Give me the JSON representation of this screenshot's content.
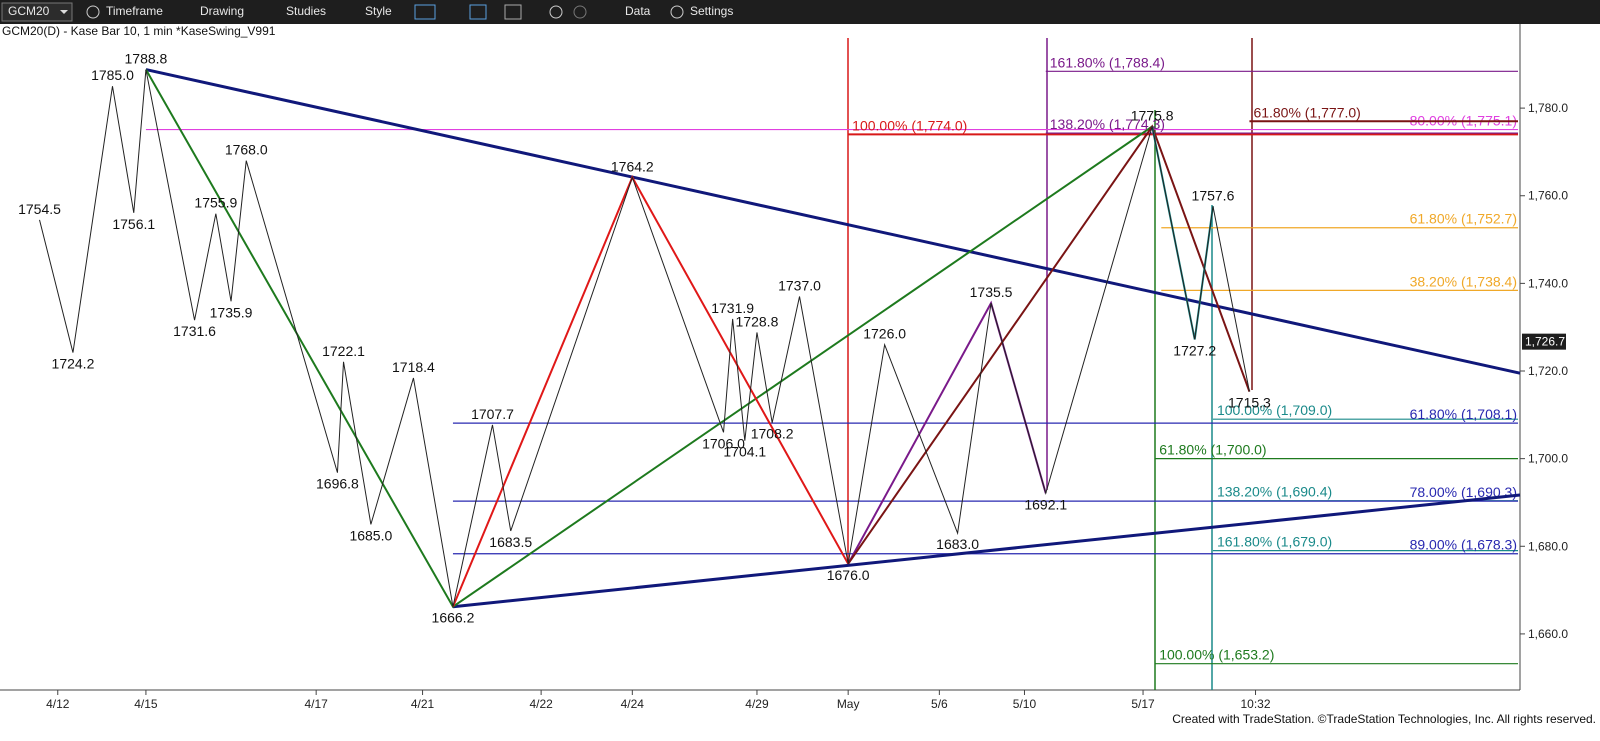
{
  "toolbar": {
    "symbol": "GCM20",
    "menus": [
      "Timeframe",
      "Drawing",
      "Studies",
      "Style",
      "Data",
      "Settings"
    ]
  },
  "footer": "Created with TradeStation. ©TradeStation Technologies, Inc. All rights reserved.",
  "chart_data": {
    "type": "line",
    "title": "GCM20(D) - Kase Bar 10, 1 min  *KaseSwing_V991",
    "ylim": [
      1647.2,
      1796
    ],
    "yticks": [
      {
        "value": 1660,
        "label": "1,660.0"
      },
      {
        "value": 1680,
        "label": "1,680.0"
      },
      {
        "value": 1700,
        "label": "1,700.0"
      },
      {
        "value": 1720,
        "label": "1,720.0"
      },
      {
        "value": 1740,
        "label": "1,740.0"
      },
      {
        "value": 1760,
        "label": "1,760.0"
      },
      {
        "value": 1780,
        "label": "1,780.0"
      }
    ],
    "xlim": [
      0,
      500
    ],
    "xticks": [
      {
        "value": 19,
        "label": "4/12"
      },
      {
        "value": 48,
        "label": "4/15"
      },
      {
        "value": 104,
        "label": "4/17"
      },
      {
        "value": 139,
        "label": "4/21"
      },
      {
        "value": 178,
        "label": "4/22"
      },
      {
        "value": 208,
        "label": "4/24"
      },
      {
        "value": 249,
        "label": "4/29"
      },
      {
        "value": 279,
        "label": "May"
      },
      {
        "value": 309,
        "label": "5/6"
      },
      {
        "value": 337,
        "label": "5/10"
      },
      {
        "value": 376,
        "label": "5/17"
      },
      {
        "value": 413,
        "label": "10:32"
      }
    ],
    "last": {
      "value": 1726.7,
      "label": "1,726.7"
    },
    "swings": {
      "color": "#222222",
      "x": [
        13,
        24,
        37,
        44,
        48,
        64,
        71,
        76,
        81,
        111,
        113,
        122,
        136,
        149,
        162,
        168,
        208,
        238,
        241,
        245,
        249,
        254,
        263,
        279,
        291,
        315,
        326,
        344,
        379,
        393,
        399,
        411
      ],
      "values": [
        1754.5,
        1724.2,
        1785.0,
        1756.1,
        1788.8,
        1731.6,
        1755.9,
        1735.9,
        1768.0,
        1696.8,
        1722.1,
        1685.0,
        1718.4,
        1666.2,
        1707.7,
        1683.5,
        1764.2,
        1706.0,
        1731.9,
        1704.1,
        1728.8,
        1708.2,
        1737.0,
        1676.0,
        1726.0,
        1683.0,
        1735.5,
        1692.1,
        1775.8,
        1727.2,
        1757.6,
        1715.3
      ],
      "value_labels": [
        "1754.5",
        "1724.2",
        "1785.0",
        "1756.1",
        "1788.8",
        "1731.6",
        "1755.9",
        "1735.9",
        "1768.0",
        "1696.8",
        "1722.1",
        "1685.0",
        "1718.4",
        "1666.2",
        "1707.7",
        "1683.5",
        "1764.2",
        "1706.0",
        "1731.9",
        "1704.1",
        "1728.8",
        "1708.2",
        "1737.0",
        "1676.0",
        "1726.0",
        "1683.0",
        "1735.5",
        "1692.1",
        "1775.8",
        "1727.2",
        "1757.6",
        "1715.3"
      ]
    },
    "trendlines": [
      {
        "color": "#10187a",
        "x": [
          48,
          500
        ],
        "values": [
          1788.8,
          1719.5
        ]
      },
      {
        "color": "#10187a",
        "x": [
          149,
          500
        ],
        "values": [
          1666.2,
          1691.7
        ]
      }
    ],
    "waves": [
      {
        "color": "#1e7a1e",
        "x": [
          48,
          149,
          379
        ],
        "values": [
          1788.8,
          1666.2,
          1775.8
        ]
      },
      {
        "color": "#e01818",
        "x": [
          149,
          208,
          279
        ],
        "values": [
          1666.2,
          1764.2,
          1676.0
        ]
      },
      {
        "color": "#7a1a8a",
        "x": [
          279,
          326,
          344
        ],
        "values": [
          1676.0,
          1735.5,
          1692.1
        ]
      },
      {
        "color": "#7a1414",
        "x": [
          279,
          379,
          411
        ],
        "values": [
          1676.0,
          1775.8,
          1715.3
        ]
      },
      {
        "color": "#1a8a8a",
        "x": [
          379,
          393,
          399
        ],
        "values": [
          1775.8,
          1727.2,
          1757.6
        ]
      }
    ],
    "levels": [
      {
        "label": "80.00% (1,775.1)",
        "value": 1775.1,
        "x": 48,
        "color": "#e040e0"
      },
      {
        "label": "100.00% (1,774.0)",
        "value": 1774.0,
        "x": 279,
        "color": "#d81818"
      },
      {
        "label": "161.80% (1,788.4)",
        "value": 1788.4,
        "x": 344,
        "color": "#7a1a8a"
      },
      {
        "label": "138.20% (1,774.3)",
        "value": 1774.3,
        "x": 344,
        "color": "#7a1a8a"
      },
      {
        "label": "61.80% (1,777.0)",
        "value": 1777.0,
        "x": 411,
        "color": "#7a1414"
      },
      {
        "label": "61.80% (1,752.7)",
        "value": 1752.7,
        "x": 382,
        "color": "#f0a828"
      },
      {
        "label": "38.20% (1,738.4)",
        "value": 1738.4,
        "x": 382,
        "color": "#f0a828"
      },
      {
        "label": "100.00% (1,709.0)",
        "value": 1709.0,
        "x": 399,
        "color": "#1a8a8a"
      },
      {
        "label": "61.80% (1,708.1)",
        "value": 1708.1,
        "x": 149,
        "color": "#2828b0"
      },
      {
        "label": "61.80% (1,700.0)",
        "value": 1700.0,
        "x": 380,
        "color": "#1e7a1e"
      },
      {
        "label": "138.20% (1,690.4)",
        "value": 1690.4,
        "x": 399,
        "color": "#1a8a8a"
      },
      {
        "label": "78.00% (1,690.3)",
        "value": 1690.3,
        "x": 149,
        "color": "#2828b0"
      },
      {
        "label": "161.80% (1,679.0)",
        "value": 1679.0,
        "x": 399,
        "color": "#1a8a8a"
      },
      {
        "label": "89.00% (1,678.3)",
        "value": 1678.3,
        "x": 149,
        "color": "#2828b0"
      },
      {
        "label": "100.00% (1,653.2)",
        "value": 1653.2,
        "x": 380,
        "color": "#1e7a1e"
      }
    ]
  }
}
